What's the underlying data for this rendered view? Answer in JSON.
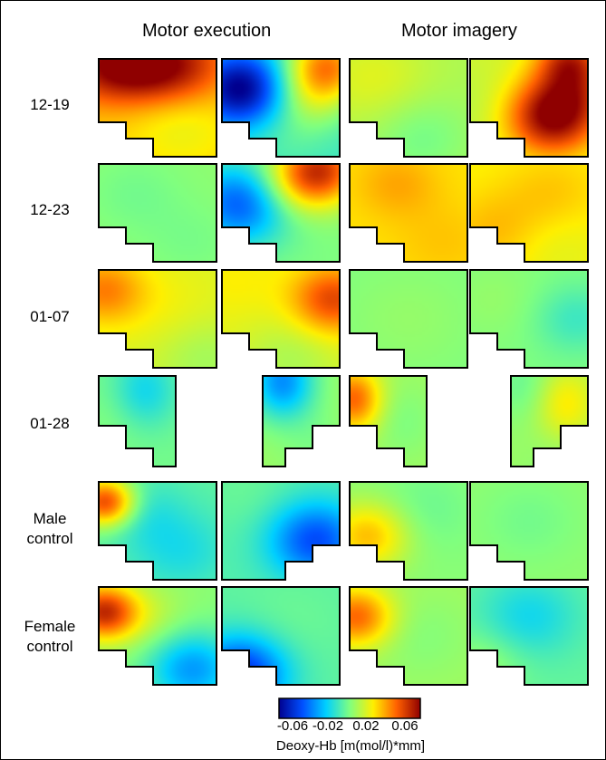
{
  "columns": {
    "motor_execution": "Motor execution",
    "motor_imagery": "Motor imagery"
  },
  "rows": [
    "12-19",
    "12-23",
    "01-07",
    "01-28",
    "Male\ncontrol",
    "Female\ncontrol"
  ],
  "colorbar": {
    "ticks": [
      "-0.06",
      "-0.02",
      "0.02",
      "0.06"
    ],
    "label": "Deoxy-Hb [m(mol/l)*mm]",
    "colors": [
      "#00008f",
      "#0050ff",
      "#00d0ff",
      "#7fff80",
      "#ffef00",
      "#ff6000",
      "#8f0000"
    ],
    "range": [
      -0.07,
      0.07
    ]
  },
  "maps": [
    [
      {
        "base": 0.028,
        "blobs": [
          [
            0.05,
            0.05,
            0.035,
            0.28
          ],
          [
            0.7,
            0.05,
            0.03,
            0.3
          ],
          [
            0.4,
            0.1,
            0.02,
            0.25
          ],
          [
            0.7,
            0.65,
            -0.01,
            0.3
          ]
        ]
      },
      {
        "base": -0.012,
        "blobs": [
          [
            0.15,
            0.3,
            -0.06,
            0.28
          ],
          [
            0.9,
            0.05,
            0.05,
            0.25
          ],
          [
            0.75,
            0.4,
            0.02,
            0.25
          ],
          [
            0.5,
            0.8,
            0.005,
            0.25
          ]
        ]
      },
      {
        "base": 0.008,
        "blobs": [
          [
            0.6,
            0.8,
            -0.01,
            0.3
          ],
          [
            0.2,
            0.2,
            0.01,
            0.35
          ]
        ]
      },
      {
        "base": 0.015,
        "blobs": [
          [
            0.7,
            0.6,
            0.055,
            0.28
          ],
          [
            0.9,
            0.3,
            0.02,
            0.25
          ],
          [
            0.85,
            0.0,
            0.035,
            0.2
          ],
          [
            0.05,
            0.5,
            -0.005,
            0.3
          ]
        ]
      }
    ],
    [
      {
        "base": 0.003,
        "blobs": [
          [
            0.3,
            0.3,
            -0.005,
            0.3
          ],
          [
            0.8,
            0.8,
            -0.004,
            0.3
          ]
        ]
      },
      {
        "base": 0.0,
        "blobs": [
          [
            0.15,
            0.4,
            -0.045,
            0.3
          ],
          [
            0.85,
            0.05,
            0.05,
            0.25
          ],
          [
            0.6,
            0.2,
            0.02,
            0.25
          ]
        ]
      },
      {
        "base": 0.025,
        "blobs": [
          [
            0.4,
            0.2,
            0.01,
            0.25
          ],
          [
            0.8,
            0.8,
            0.005,
            0.3
          ]
        ]
      },
      {
        "base": 0.022,
        "blobs": [
          [
            0.2,
            0.7,
            0.01,
            0.3
          ],
          [
            0.7,
            0.3,
            0.008,
            0.3
          ],
          [
            0.7,
            0.85,
            -0.005,
            0.3
          ]
        ]
      }
    ],
    [
      {
        "base": 0.016,
        "blobs": [
          [
            0.03,
            0.2,
            0.025,
            0.25
          ],
          [
            0.6,
            0.4,
            0.005,
            0.35
          ],
          [
            0.9,
            0.9,
            -0.01,
            0.3
          ]
        ]
      },
      {
        "base": 0.018,
        "blobs": [
          [
            0.95,
            0.3,
            0.035,
            0.25
          ],
          [
            0.1,
            0.1,
            0.005,
            0.3
          ],
          [
            0.6,
            0.9,
            -0.01,
            0.3
          ]
        ]
      },
      {
        "base": 0.0,
        "blobs": [
          [
            0.5,
            0.5,
            0.004,
            0.4
          ]
        ]
      },
      {
        "base": 0.0,
        "blobs": [
          [
            0.9,
            0.5,
            -0.012,
            0.25
          ],
          [
            0.2,
            0.3,
            0.004,
            0.3
          ]
        ]
      }
    ],
    [
      {
        "base": -0.002,
        "blobs": [
          [
            0.6,
            0.15,
            -0.018,
            0.3
          ],
          [
            0.2,
            0.5,
            0.003,
            0.3
          ]
        ]
      },
      {
        "base": 0.005,
        "blobs": [
          [
            0.25,
            0.05,
            -0.04,
            0.3
          ],
          [
            0.7,
            0.8,
            -0.005,
            0.3
          ]
        ]
      },
      {
        "base": 0.006,
        "blobs": [
          [
            0.05,
            0.25,
            0.04,
            0.25
          ],
          [
            0.7,
            0.5,
            -0.006,
            0.3
          ]
        ]
      },
      {
        "base": 0.005,
        "blobs": [
          [
            0.7,
            0.3,
            0.02,
            0.3
          ],
          [
            0.2,
            0.1,
            -0.01,
            0.3
          ],
          [
            0.6,
            0.9,
            -0.003,
            0.3
          ]
        ]
      }
    ],
    [
      {
        "base": -0.006,
        "blobs": [
          [
            0.05,
            0.2,
            0.06,
            0.18
          ],
          [
            0.35,
            0.3,
            -0.01,
            0.25
          ],
          [
            0.7,
            0.7,
            -0.012,
            0.3
          ]
        ]
      },
      {
        "base": -0.008,
        "blobs": [
          [
            0.8,
            0.6,
            -0.04,
            0.28
          ],
          [
            0.2,
            0.1,
            0.004,
            0.3
          ]
        ]
      },
      {
        "base": 0.002,
        "blobs": [
          [
            0.15,
            0.55,
            0.03,
            0.25
          ],
          [
            0.6,
            0.3,
            -0.006,
            0.3
          ]
        ]
      },
      {
        "base": 0.003,
        "blobs": [
          [
            0.5,
            0.4,
            -0.005,
            0.3
          ]
        ]
      }
    ],
    [
      {
        "base": 0.002,
        "blobs": [
          [
            0.03,
            0.25,
            0.055,
            0.2
          ],
          [
            0.8,
            0.85,
            -0.035,
            0.28
          ],
          [
            0.4,
            0.3,
            0.01,
            0.25
          ]
        ]
      },
      {
        "base": -0.006,
        "blobs": [
          [
            0.15,
            0.9,
            -0.05,
            0.28
          ],
          [
            0.55,
            0.4,
            0.003,
            0.3
          ]
        ]
      },
      {
        "base": 0.006,
        "blobs": [
          [
            0.05,
            0.3,
            0.04,
            0.22
          ],
          [
            0.6,
            0.5,
            -0.005,
            0.3
          ]
        ]
      },
      {
        "base": -0.005,
        "blobs": [
          [
            0.5,
            0.3,
            -0.015,
            0.3
          ],
          [
            0.1,
            0.8,
            0.01,
            0.25
          ]
        ]
      }
    ]
  ]
}
